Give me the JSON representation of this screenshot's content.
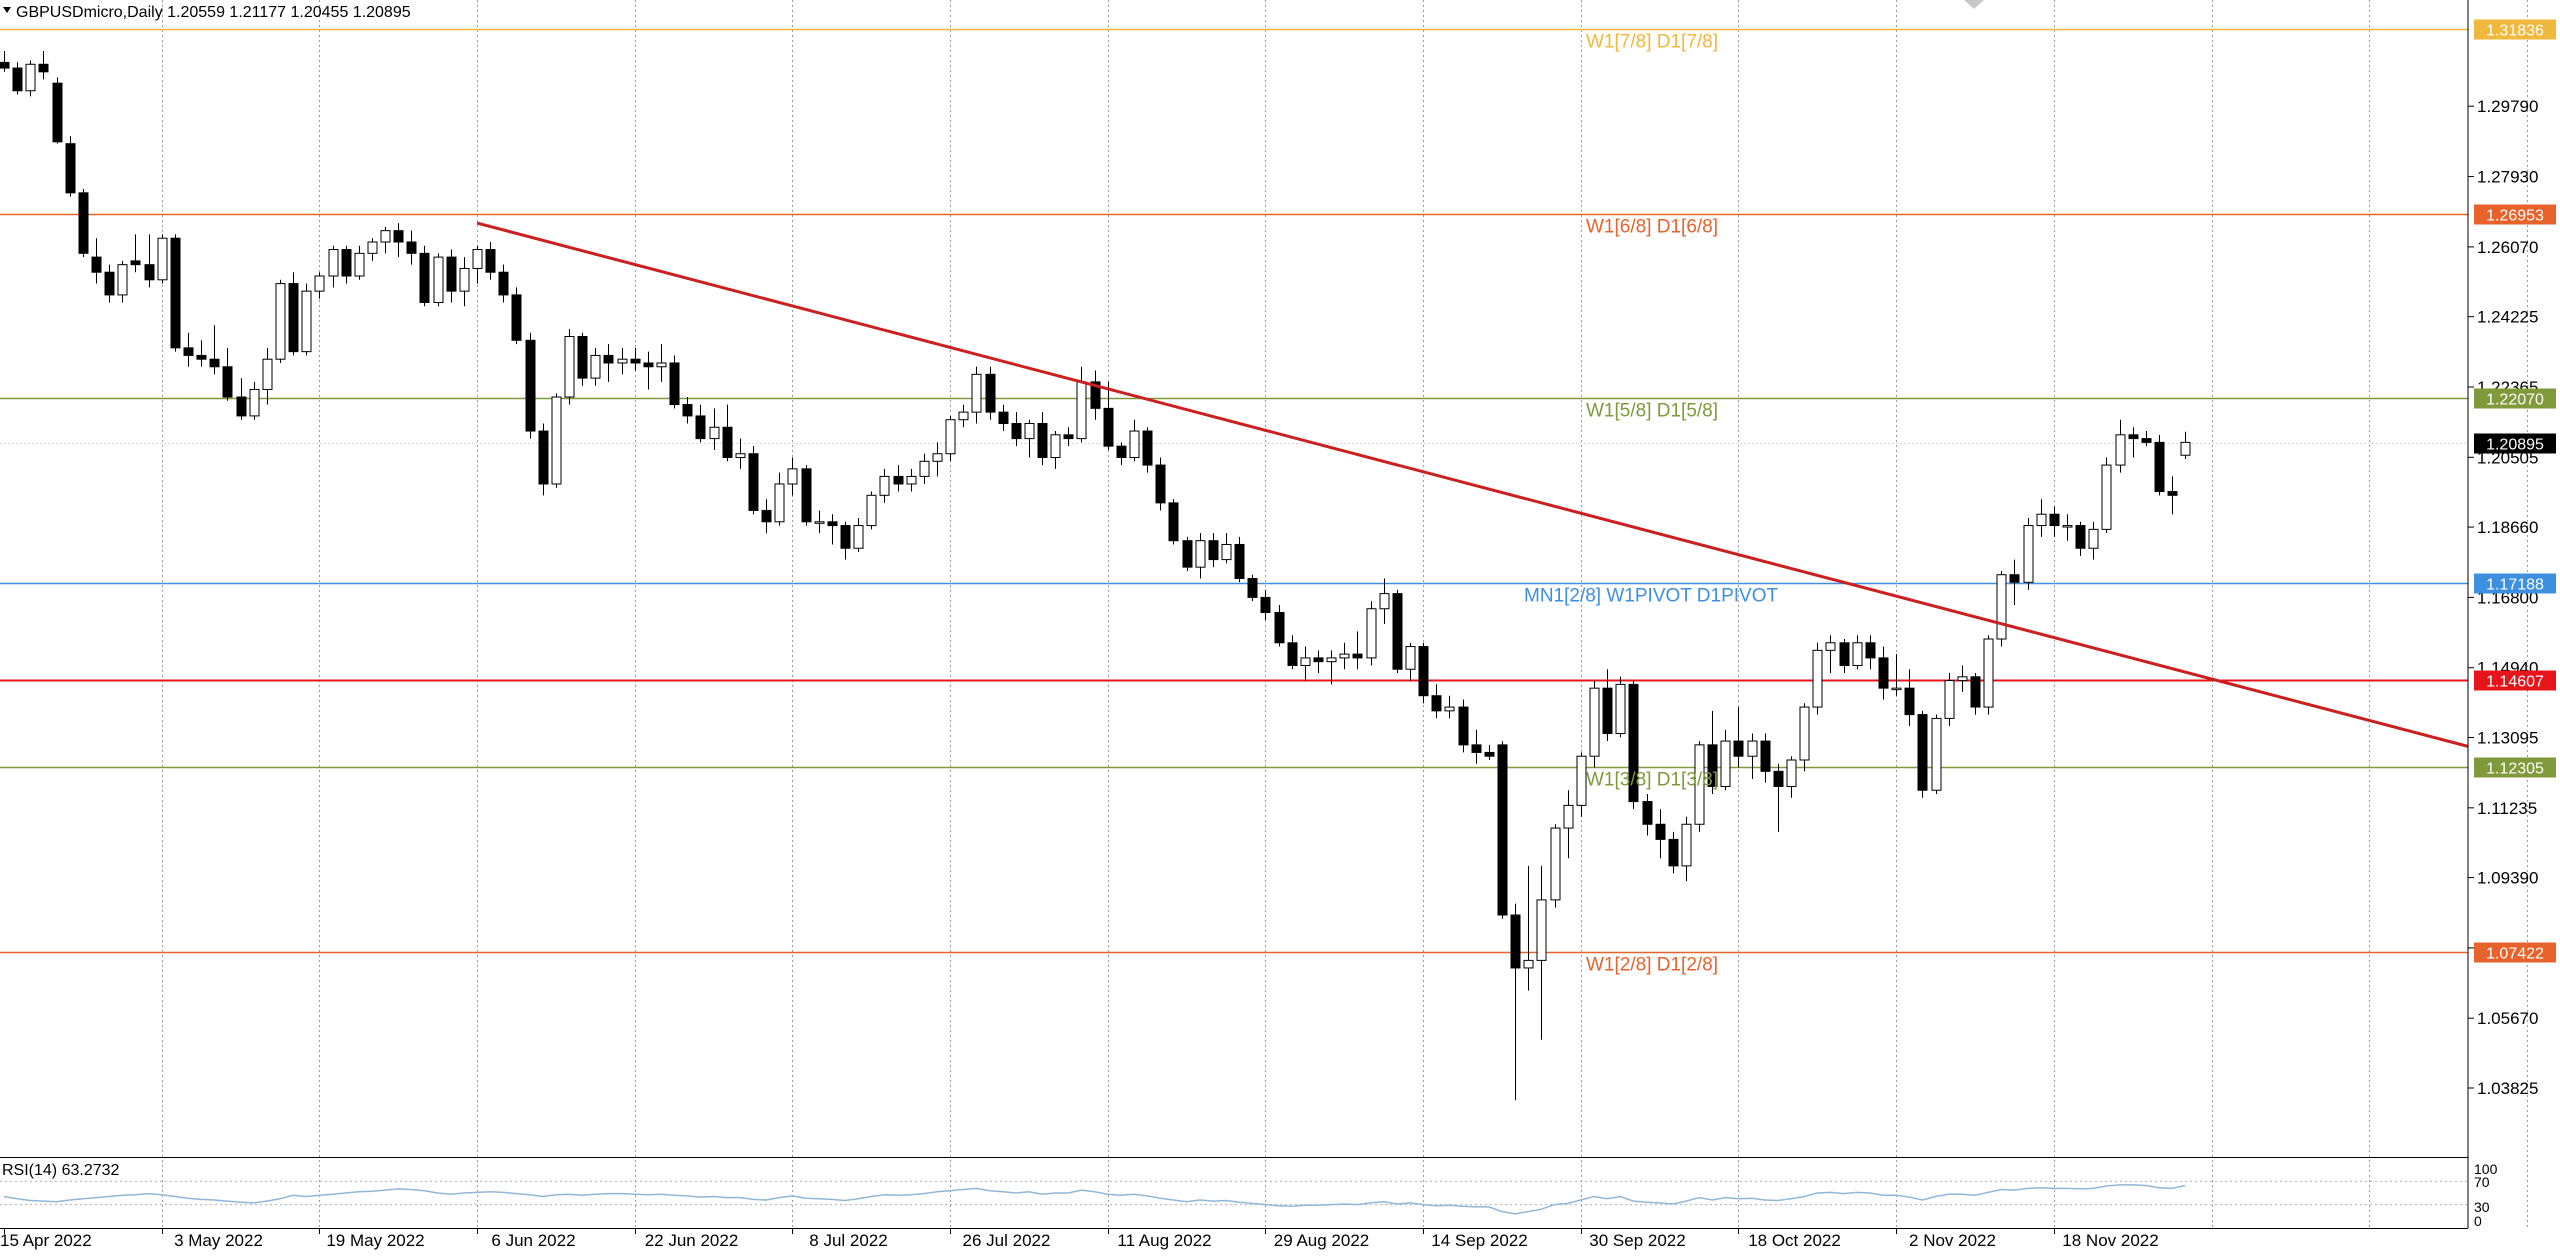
{
  "header": {
    "symbol_line": "GBPUSDmicro,Daily  1.20559 1.21177 1.20455 1.20895"
  },
  "chart_data": [
    {
      "type": "candlestick",
      "symbol": "GBPUSDmicro",
      "timeframe": "Daily",
      "ohlc_header": {
        "open": 1.20559,
        "high": 1.21177,
        "low": 1.20455,
        "close": 1.20895
      },
      "ylim": [
        1.02,
        1.326
      ],
      "y_ticks": [
        "1.29790",
        "1.27930",
        "1.26070",
        "1.24225",
        "1.22365",
        "1.20505",
        "1.18660",
        "1.16800",
        "1.14940",
        "1.13095",
        "1.11235",
        "1.09390",
        "1.07530",
        "1.05670",
        "1.03825"
      ],
      "x_labels": [
        "15 Apr 2022",
        "3 May 2022",
        "19 May 2022",
        "6 Jun 2022",
        "22 Jun 2022",
        "8 Jul 2022",
        "26 Jul 2022",
        "11 Aug 2022",
        "29 Aug 2022",
        "14 Sep 2022",
        "30 Sep 2022",
        "18 Oct 2022",
        "2 Nov 2022",
        "18 Nov 2022"
      ],
      "x_label_bars": [
        0,
        12,
        24,
        36,
        48,
        60,
        72,
        84,
        96,
        108,
        120,
        132,
        144,
        156
      ],
      "total_slots": 210,
      "candles": [
        [
          1.3095,
          1.3125,
          1.307,
          1.308
        ],
        [
          1.308,
          1.3095,
          1.301,
          1.302
        ],
        [
          1.302,
          1.31,
          1.3005,
          1.309
        ],
        [
          1.309,
          1.3125,
          1.305,
          1.307
        ],
        [
          1.304,
          1.3055,
          1.288,
          1.2885
        ],
        [
          1.288,
          1.29,
          1.274,
          1.275
        ],
        [
          1.275,
          1.276,
          1.258,
          1.259
        ],
        [
          1.258,
          1.263,
          1.251,
          1.254
        ],
        [
          1.254,
          1.256,
          1.246,
          1.248
        ],
        [
          1.248,
          1.257,
          1.246,
          1.256
        ],
        [
          1.257,
          1.264,
          1.254,
          1.256
        ],
        [
          1.256,
          1.264,
          1.25,
          1.252
        ],
        [
          1.252,
          1.264,
          1.251,
          1.263
        ],
        [
          1.263,
          1.264,
          1.233,
          1.234
        ],
        [
          1.234,
          1.238,
          1.229,
          1.232
        ],
        [
          1.232,
          1.236,
          1.229,
          1.231
        ],
        [
          1.231,
          1.24,
          1.227,
          1.229
        ],
        [
          1.229,
          1.234,
          1.22,
          1.221
        ],
        [
          1.221,
          1.226,
          1.215,
          1.216
        ],
        [
          1.216,
          1.225,
          1.215,
          1.223
        ],
        [
          1.223,
          1.234,
          1.219,
          1.231
        ],
        [
          1.231,
          1.252,
          1.23,
          1.251
        ],
        [
          1.251,
          1.254,
          1.232,
          1.233
        ],
        [
          1.233,
          1.251,
          1.232,
          1.249
        ],
        [
          1.249,
          1.254,
          1.247,
          1.253
        ],
        [
          1.253,
          1.261,
          1.25,
          1.26
        ],
        [
          1.26,
          1.261,
          1.251,
          1.253
        ],
        [
          1.253,
          1.261,
          1.252,
          1.259
        ],
        [
          1.259,
          1.263,
          1.257,
          1.262
        ],
        [
          1.262,
          1.266,
          1.259,
          1.265
        ],
        [
          1.265,
          1.267,
          1.258,
          1.262
        ],
        [
          1.262,
          1.265,
          1.256,
          1.259
        ],
        [
          1.259,
          1.261,
          1.245,
          1.246
        ],
        [
          1.246,
          1.259,
          1.245,
          1.258
        ],
        [
          1.258,
          1.26,
          1.246,
          1.249
        ],
        [
          1.249,
          1.258,
          1.245,
          1.255
        ],
        [
          1.255,
          1.261,
          1.251,
          1.26
        ],
        [
          1.26,
          1.262,
          1.252,
          1.254
        ],
        [
          1.254,
          1.256,
          1.246,
          1.248
        ],
        [
          1.248,
          1.25,
          1.235,
          1.236
        ],
        [
          1.236,
          1.238,
          1.21,
          1.212
        ],
        [
          1.212,
          1.214,
          1.195,
          1.198
        ],
        [
          1.198,
          1.222,
          1.197,
          1.221
        ],
        [
          1.221,
          1.239,
          1.219,
          1.237
        ],
        [
          1.237,
          1.238,
          1.224,
          1.226
        ],
        [
          1.226,
          1.234,
          1.224,
          1.232
        ],
        [
          1.232,
          1.235,
          1.225,
          1.23
        ],
        [
          1.23,
          1.234,
          1.227,
          1.231
        ],
        [
          1.231,
          1.234,
          1.228,
          1.23
        ],
        [
          1.23,
          1.233,
          1.223,
          1.229
        ],
        [
          1.229,
          1.235,
          1.225,
          1.23
        ],
        [
          1.23,
          1.232,
          1.218,
          1.219
        ],
        [
          1.219,
          1.221,
          1.214,
          1.216
        ],
        [
          1.216,
          1.219,
          1.209,
          1.21
        ],
        [
          1.21,
          1.218,
          1.207,
          1.213
        ],
        [
          1.213,
          1.219,
          1.204,
          1.205
        ],
        [
          1.205,
          1.21,
          1.202,
          1.206
        ],
        [
          1.206,
          1.208,
          1.19,
          1.191
        ],
        [
          1.191,
          1.194,
          1.185,
          1.188
        ],
        [
          1.188,
          1.201,
          1.187,
          1.198
        ],
        [
          1.198,
          1.205,
          1.195,
          1.202
        ],
        [
          1.202,
          1.203,
          1.187,
          1.188
        ],
        [
          1.188,
          1.191,
          1.185,
          1.188
        ],
        [
          1.188,
          1.19,
          1.182,
          1.187
        ],
        [
          1.187,
          1.188,
          1.178,
          1.181
        ],
        [
          1.181,
          1.189,
          1.18,
          1.187
        ],
        [
          1.187,
          1.196,
          1.186,
          1.195
        ],
        [
          1.195,
          1.202,
          1.193,
          1.2
        ],
        [
          1.2,
          1.203,
          1.196,
          1.198
        ],
        [
          1.198,
          1.202,
          1.196,
          1.2
        ],
        [
          1.2,
          1.206,
          1.198,
          1.204
        ],
        [
          1.204,
          1.209,
          1.2,
          1.206
        ],
        [
          1.206,
          1.216,
          1.204,
          1.215
        ],
        [
          1.215,
          1.219,
          1.213,
          1.217
        ],
        [
          1.217,
          1.229,
          1.214,
          1.227
        ],
        [
          1.227,
          1.229,
          1.215,
          1.217
        ],
        [
          1.217,
          1.219,
          1.212,
          1.214
        ],
        [
          1.214,
          1.217,
          1.208,
          1.21
        ],
        [
          1.21,
          1.215,
          1.205,
          1.214
        ],
        [
          1.214,
          1.217,
          1.203,
          1.205
        ],
        [
          1.205,
          1.212,
          1.202,
          1.211
        ],
        [
          1.211,
          1.213,
          1.208,
          1.21
        ],
        [
          1.21,
          1.229,
          1.209,
          1.225
        ],
        [
          1.225,
          1.228,
          1.215,
          1.218
        ],
        [
          1.218,
          1.225,
          1.207,
          1.208
        ],
        [
          1.208,
          1.209,
          1.203,
          1.205
        ],
        [
          1.205,
          1.215,
          1.204,
          1.212
        ],
        [
          1.212,
          1.213,
          1.201,
          1.203
        ],
        [
          1.203,
          1.205,
          1.191,
          1.193
        ],
        [
          1.193,
          1.194,
          1.182,
          1.183
        ],
        [
          1.183,
          1.184,
          1.175,
          1.176
        ],
        [
          1.176,
          1.185,
          1.173,
          1.183
        ],
        [
          1.183,
          1.185,
          1.176,
          1.178
        ],
        [
          1.178,
          1.185,
          1.177,
          1.182
        ],
        [
          1.182,
          1.184,
          1.172,
          1.173
        ],
        [
          1.173,
          1.174,
          1.167,
          1.168
        ],
        [
          1.168,
          1.17,
          1.162,
          1.164
        ],
        [
          1.164,
          1.166,
          1.155,
          1.156
        ],
        [
          1.156,
          1.158,
          1.149,
          1.15
        ],
        [
          1.15,
          1.155,
          1.146,
          1.152
        ],
        [
          1.152,
          1.154,
          1.148,
          1.151
        ],
        [
          1.151,
          1.154,
          1.145,
          1.152
        ],
        [
          1.152,
          1.156,
          1.149,
          1.153
        ],
        [
          1.153,
          1.159,
          1.149,
          1.152
        ],
        [
          1.152,
          1.167,
          1.15,
          1.165
        ],
        [
          1.165,
          1.173,
          1.161,
          1.169
        ],
        [
          1.169,
          1.17,
          1.148,
          1.149
        ],
        [
          1.149,
          1.156,
          1.146,
          1.155
        ],
        [
          1.155,
          1.156,
          1.14,
          1.142
        ],
        [
          1.142,
          1.145,
          1.136,
          1.138
        ],
        [
          1.138,
          1.142,
          1.136,
          1.139
        ],
        [
          1.139,
          1.141,
          1.127,
          1.129
        ],
        [
          1.129,
          1.133,
          1.124,
          1.127
        ],
        [
          1.127,
          1.129,
          1.125,
          1.126
        ],
        [
          1.129,
          1.13,
          1.083,
          1.084
        ],
        [
          1.084,
          1.087,
          1.035,
          1.07
        ],
        [
          1.07,
          1.097,
          1.064,
          1.072
        ],
        [
          1.072,
          1.097,
          1.051,
          1.088
        ],
        [
          1.088,
          1.108,
          1.086,
          1.107
        ],
        [
          1.107,
          1.117,
          1.099,
          1.113
        ],
        [
          1.113,
          1.127,
          1.11,
          1.126
        ],
        [
          1.126,
          1.146,
          1.123,
          1.144
        ],
        [
          1.144,
          1.149,
          1.13,
          1.132
        ],
        [
          1.132,
          1.147,
          1.131,
          1.145
        ],
        [
          1.145,
          1.146,
          1.112,
          1.114
        ],
        [
          1.114,
          1.116,
          1.105,
          1.108
        ],
        [
          1.108,
          1.112,
          1.099,
          1.104
        ],
        [
          1.104,
          1.106,
          1.095,
          1.097
        ],
        [
          1.097,
          1.11,
          1.093,
          1.108
        ],
        [
          1.108,
          1.13,
          1.106,
          1.129
        ],
        [
          1.129,
          1.138,
          1.116,
          1.118
        ],
        [
          1.118,
          1.133,
          1.117,
          1.13
        ],
        [
          1.13,
          1.139,
          1.123,
          1.126
        ],
        [
          1.126,
          1.132,
          1.12,
          1.13
        ],
        [
          1.13,
          1.132,
          1.119,
          1.122
        ],
        [
          1.122,
          1.124,
          1.106,
          1.118
        ],
        [
          1.118,
          1.126,
          1.115,
          1.125
        ],
        [
          1.125,
          1.14,
          1.122,
          1.139
        ],
        [
          1.139,
          1.156,
          1.137,
          1.154
        ],
        [
          1.154,
          1.158,
          1.148,
          1.156
        ],
        [
          1.156,
          1.157,
          1.148,
          1.15
        ],
        [
          1.15,
          1.158,
          1.149,
          1.156
        ],
        [
          1.156,
          1.158,
          1.149,
          1.152
        ],
        [
          1.152,
          1.155,
          1.141,
          1.144
        ],
        [
          1.144,
          1.153,
          1.142,
          1.144
        ],
        [
          1.144,
          1.149,
          1.134,
          1.137
        ],
        [
          1.137,
          1.138,
          1.115,
          1.117
        ],
        [
          1.117,
          1.137,
          1.116,
          1.136
        ],
        [
          1.136,
          1.148,
          1.134,
          1.146
        ],
        [
          1.146,
          1.15,
          1.143,
          1.147
        ],
        [
          1.147,
          1.148,
          1.137,
          1.139
        ],
        [
          1.139,
          1.158,
          1.137,
          1.157
        ],
        [
          1.157,
          1.175,
          1.155,
          1.174
        ],
        [
          1.174,
          1.178,
          1.166,
          1.172
        ],
        [
          1.172,
          1.189,
          1.17,
          1.187
        ],
        [
          1.187,
          1.194,
          1.184,
          1.19
        ],
        [
          1.19,
          1.192,
          1.184,
          1.187
        ],
        [
          1.187,
          1.19,
          1.183,
          1.187
        ],
        [
          1.187,
          1.188,
          1.179,
          1.181
        ],
        [
          1.181,
          1.188,
          1.178,
          1.186
        ],
        [
          1.186,
          1.205,
          1.185,
          1.203
        ],
        [
          1.203,
          1.215,
          1.201,
          1.211
        ],
        [
          1.211,
          1.213,
          1.205,
          1.21
        ],
        [
          1.21,
          1.212,
          1.208,
          1.209
        ],
        [
          1.209,
          1.211,
          1.195,
          1.196
        ],
        [
          1.196,
          1.2,
          1.19,
          1.195
        ],
        [
          1.2056,
          1.2118,
          1.2046,
          1.209
        ]
      ],
      "trendline": {
        "color": "#cc1f1f",
        "start": {
          "bar": 36,
          "price": 1.267
        },
        "end_price": 1.1286
      },
      "levels": [
        {
          "price": 1.31836,
          "label": "W1[7/8] D1[7/8]",
          "tag": "1.31836",
          "color": "#f0b83c"
        },
        {
          "price": 1.26953,
          "label": "W1[6/8] D1[6/8]",
          "tag": "1.26953",
          "color": "#e8622c"
        },
        {
          "price": 1.2207,
          "label": "W1[5/8] D1[5/8]",
          "tag": "1.22070",
          "color": "#7f9a3a"
        },
        {
          "price": 1.17188,
          "label": "MN1[2/8] W1PIVOT D1PIVOT",
          "tag": "1.17188",
          "color": "#3d8fe0"
        },
        {
          "price": 1.14607,
          "label": "",
          "tag": "1.14607",
          "color": "#e8141c"
        },
        {
          "price": 1.12305,
          "label": "W1[3/8] D1[3/8]",
          "tag": "1.12305",
          "color": "#7f9a3a"
        },
        {
          "price": 1.07422,
          "label": "W1[2/8] D1[2/8]",
          "tag": "1.07422",
          "color": "#e8622c"
        }
      ],
      "current_price": {
        "price": 1.20895,
        "tag": "1.20895",
        "color": "#000000"
      }
    },
    {
      "type": "line",
      "indicator": "RSI(14)",
      "label": "RSI(14) 63.2732",
      "value": 63.2732,
      "ylim": [
        0,
        100
      ],
      "levels": [
        30,
        70
      ],
      "y_ticks": [
        "100",
        "70",
        "30",
        "0"
      ],
      "color": "#8fb8d8",
      "values": [
        44,
        40,
        37,
        36,
        35,
        38,
        40,
        42,
        44,
        46,
        47,
        49,
        47,
        44,
        41,
        39,
        38,
        36,
        34,
        33,
        36,
        40,
        46,
        44,
        46,
        48,
        50,
        52,
        53,
        55,
        57,
        56,
        54,
        50,
        48,
        50,
        51,
        52,
        51,
        49,
        47,
        44,
        47,
        48,
        46,
        48,
        49,
        49,
        48,
        47,
        48,
        46,
        45,
        43,
        44,
        42,
        42,
        39,
        38,
        42,
        45,
        41,
        40,
        39,
        37,
        40,
        44,
        47,
        46,
        47,
        49,
        52,
        54,
        56,
        58,
        54,
        52,
        50,
        52,
        48,
        50,
        50,
        55,
        52,
        48,
        46,
        48,
        45,
        41,
        38,
        35,
        38,
        36,
        37,
        34,
        32,
        30,
        28,
        27,
        29,
        29,
        30,
        31,
        30,
        33,
        35,
        31,
        33,
        30,
        28,
        29,
        27,
        26,
        26,
        18,
        14,
        18,
        22,
        30,
        32,
        38,
        44,
        40,
        44,
        36,
        34,
        33,
        31,
        36,
        42,
        38,
        42,
        40,
        41,
        38,
        37,
        40,
        44,
        50,
        51,
        49,
        51,
        50,
        46,
        46,
        43,
        38,
        44,
        48,
        48,
        46,
        51,
        56,
        55,
        58,
        59,
        58,
        58,
        57,
        58,
        62,
        64,
        64,
        63,
        59,
        58,
        63
      ]
    }
  ]
}
